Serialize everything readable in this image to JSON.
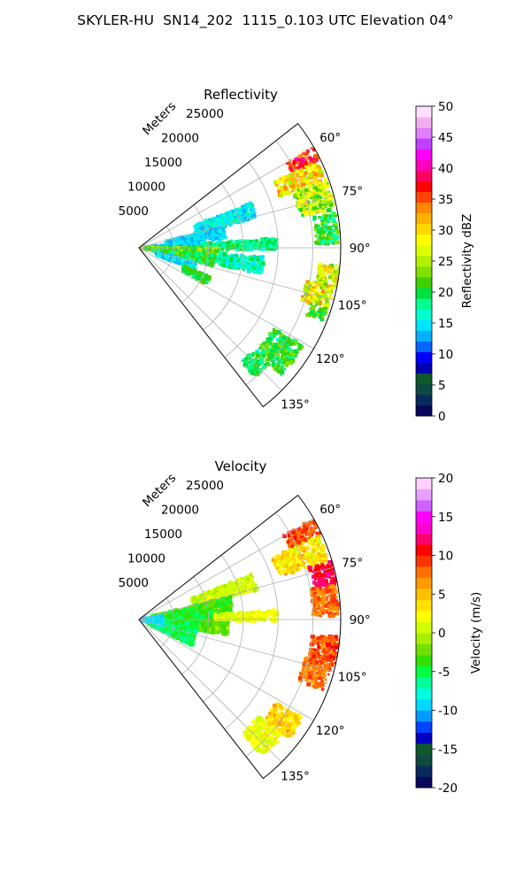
{
  "suptitle": "SKYLER-HU  SN14_202  1115_0.103 UTC Elevation 04°",
  "chart_data": [
    {
      "type": "heatmap",
      "projection": "polar sector",
      "title": "Reflectivity",
      "range_axis_label": "Meters",
      "range_ticks": [
        5000,
        10000,
        15000,
        20000,
        25000
      ],
      "range_tick_labels": [
        "5000",
        "10000",
        "15000",
        "20000",
        "25000"
      ],
      "range_lim": [
        0,
        29000
      ],
      "azimuth_ticks": [
        60,
        75,
        90,
        105,
        120,
        135
      ],
      "azimuth_tick_labels": [
        "60°",
        "75°",
        "90°",
        "105°",
        "120°",
        "135°"
      ],
      "azimuth_lim": [
        52,
        142
      ],
      "grid": true,
      "colorbar": {
        "label": "Reflectivity dBZ",
        "min": 0,
        "max": 50,
        "ticks": [
          0,
          5,
          10,
          15,
          20,
          25,
          30,
          35,
          40,
          45,
          50
        ],
        "tick_labels": [
          "0",
          "5",
          "10",
          "15",
          "20",
          "25",
          "30",
          "35",
          "40",
          "45",
          "50"
        ],
        "colors": [
          "#08085a",
          "#0a2a5e",
          "#0d4a42",
          "#0f5a2a",
          "#0000b0",
          "#0000ff",
          "#0066ff",
          "#00b0ff",
          "#00e6ff",
          "#00ffd0",
          "#00ff90",
          "#00e040",
          "#40d000",
          "#80e000",
          "#b0f000",
          "#e0ff00",
          "#ffff00",
          "#ffd800",
          "#ffb000",
          "#ff8800",
          "#ff4400",
          "#ff0000",
          "#ff0060",
          "#ff00c0",
          "#ff00ff",
          "#c040ff",
          "#e080ff",
          "#f0b0f0",
          "#ffe0ff"
        ]
      },
      "cells": [
        {
          "az": [
            60,
            64
          ],
          "r": [
            24500,
            29000
          ],
          "v": [
            33,
            40
          ]
        },
        {
          "az": [
            64,
            70
          ],
          "r": [
            21500,
            28500
          ],
          "v": [
            24,
            34
          ]
        },
        {
          "az": [
            70,
            79
          ],
          "r": [
            23500,
            28700
          ],
          "v": [
            20,
            30
          ]
        },
        {
          "az": [
            80,
            89
          ],
          "r": [
            25500,
            28700
          ],
          "v": [
            16,
            24
          ]
        },
        {
          "az": [
            95,
            101
          ],
          "r": [
            26000,
            29000
          ],
          "v": [
            22,
            33
          ]
        },
        {
          "az": [
            101,
            108
          ],
          "r": [
            24500,
            28500
          ],
          "v": [
            22,
            34
          ]
        },
        {
          "az": [
            108,
            112
          ],
          "r": [
            26000,
            28500
          ],
          "v": [
            18,
            24
          ]
        },
        {
          "az": [
            121,
            132
          ],
          "r": [
            22500,
            27500
          ],
          "v": [
            17,
            24
          ]
        },
        {
          "az": [
            132,
            138
          ],
          "r": [
            22000,
            25000
          ],
          "v": [
            17,
            22
          ]
        },
        {
          "az": [
            68,
            76
          ],
          "r": [
            8500,
            17500
          ],
          "v": [
            13,
            18
          ]
        },
        {
          "az": [
            76,
            84
          ],
          "r": [
            4000,
            12500
          ],
          "v": [
            12,
            17
          ]
        },
        {
          "az": [
            84,
            90
          ],
          "r": [
            0,
            9500
          ],
          "v": [
            12,
            16
          ]
        },
        {
          "az": [
            86,
            91
          ],
          "r": [
            9000,
            20000
          ],
          "v": [
            16,
            21
          ]
        },
        {
          "az": [
            90,
            99
          ],
          "r": [
            0,
            11500
          ],
          "v": [
            19,
            26
          ]
        },
        {
          "az": [
            95,
            104
          ],
          "r": [
            2000,
            11000
          ],
          "v": [
            17,
            24
          ]
        },
        {
          "az": [
            104,
            112
          ],
          "r": [
            2500,
            8500
          ],
          "v": [
            12,
            17
          ]
        },
        {
          "az": [
            112,
            118
          ],
          "r": [
            7000,
            11000
          ],
          "v": [
            18,
            22
          ]
        },
        {
          "az": [
            94,
            102
          ],
          "r": [
            11500,
            18000
          ],
          "v": [
            14,
            20
          ]
        }
      ]
    },
    {
      "type": "heatmap",
      "projection": "polar sector",
      "title": "Velocity",
      "range_axis_label": "Meters",
      "range_ticks": [
        5000,
        10000,
        15000,
        20000,
        25000
      ],
      "range_tick_labels": [
        "5000",
        "10000",
        "15000",
        "20000",
        "25000"
      ],
      "range_lim": [
        0,
        29000
      ],
      "azimuth_ticks": [
        60,
        75,
        90,
        105,
        120,
        135
      ],
      "azimuth_tick_labels": [
        "60°",
        "75°",
        "90°",
        "105°",
        "120°",
        "135°"
      ],
      "azimuth_lim": [
        52,
        142
      ],
      "grid": true,
      "colorbar": {
        "label": "Velocity (m/s)",
        "min": -20,
        "max": 20,
        "ticks": [
          -20,
          -15,
          -10,
          -5,
          0,
          5,
          10,
          15,
          20
        ],
        "tick_labels": [
          "-20",
          "-15",
          "-10",
          "-5",
          "0",
          "5",
          "10",
          "15",
          "20"
        ],
        "colors": [
          "#08085a",
          "#0a2a5e",
          "#0d4a42",
          "#0f5a2a",
          "#0000c0",
          "#0044ff",
          "#0099ff",
          "#00d8ff",
          "#00ffe0",
          "#00ff99",
          "#00ff40",
          "#30e000",
          "#70e000",
          "#a8f000",
          "#d0ff00",
          "#ffff00",
          "#ffe000",
          "#ffc000",
          "#ff9900",
          "#ff7000",
          "#ff3300",
          "#ff0000",
          "#ff0070",
          "#ff00d0",
          "#ff00ff",
          "#d060ff",
          "#e8a0ff",
          "#ffd0ff"
        ]
      },
      "cells": [
        {
          "az": [
            60,
            65
          ],
          "r": [
            24000,
            29000
          ],
          "v": [
            7,
            11
          ]
        },
        {
          "az": [
            65,
            73
          ],
          "r": [
            21000,
            28500
          ],
          "v": [
            1,
            6
          ]
        },
        {
          "az": [
            73,
            80
          ],
          "r": [
            25500,
            29000
          ],
          "v": [
            10,
            13
          ]
        },
        {
          "az": [
            80,
            89
          ],
          "r": [
            25000,
            28700
          ],
          "v": [
            6,
            10
          ]
        },
        {
          "az": [
            95,
            103
          ],
          "r": [
            25000,
            29000
          ],
          "v": [
            7,
            11
          ]
        },
        {
          "az": [
            103,
            111
          ],
          "r": [
            24500,
            28500
          ],
          "v": [
            6,
            10
          ]
        },
        {
          "az": [
            121,
            129
          ],
          "r": [
            23000,
            27500
          ],
          "v": [
            2,
            6
          ]
        },
        {
          "az": [
            129,
            138
          ],
          "r": [
            22000,
            26500
          ],
          "v": [
            0,
            3
          ]
        },
        {
          "az": [
            68,
            76
          ],
          "r": [
            8000,
            17500
          ],
          "v": [
            -1,
            2
          ]
        },
        {
          "az": [
            76,
            86
          ],
          "r": [
            2000,
            13500
          ],
          "v": [
            -5,
            -2
          ]
        },
        {
          "az": [
            86,
            91
          ],
          "r": [
            9000,
            20000
          ],
          "v": [
            0,
            3
          ]
        },
        {
          "az": [
            84,
            100
          ],
          "r": [
            0,
            10500
          ],
          "v": [
            -6,
            -3
          ]
        },
        {
          "az": [
            100,
            116
          ],
          "r": [
            1500,
            8500
          ],
          "v": [
            -7,
            -4
          ]
        },
        {
          "az": [
            80,
            104
          ],
          "r": [
            0,
            3500
          ],
          "v": [
            -10,
            -8
          ]
        },
        {
          "az": [
            92,
            100
          ],
          "r": [
            9000,
            13000
          ],
          "v": [
            -4,
            -1
          ]
        }
      ]
    }
  ]
}
